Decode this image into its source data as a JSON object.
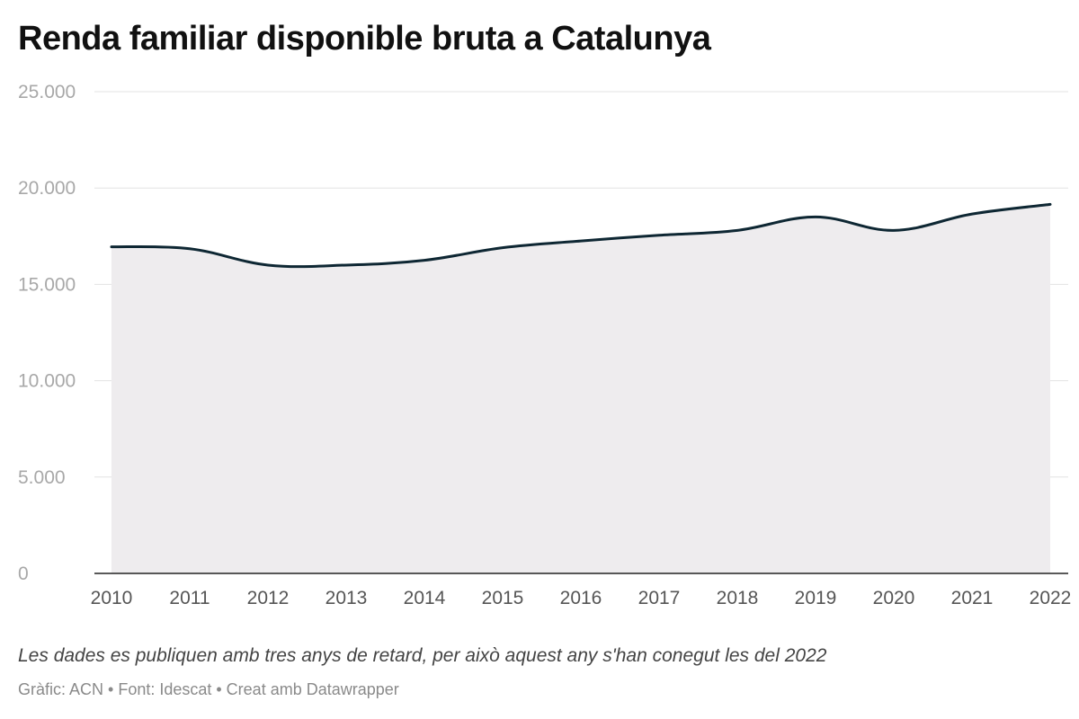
{
  "chart_data": {
    "type": "area",
    "title": "Renda familiar disponible bruta a Catalunya",
    "x": [
      "2010",
      "2011",
      "2012",
      "2013",
      "2014",
      "2015",
      "2016",
      "2017",
      "2018",
      "2019",
      "2020",
      "2021",
      "2022"
    ],
    "series": [
      {
        "values": [
          16950,
          16850,
          16000,
          16000,
          16250,
          16900,
          17250,
          17550,
          17800,
          18500,
          17800,
          18650,
          19150
        ]
      }
    ],
    "y_ticks": [
      0,
      5000,
      10000,
      15000,
      20000,
      25000
    ],
    "y_tick_labels": [
      "0",
      "5.000",
      "10.000",
      "15.000",
      "20.000",
      "25.000"
    ],
    "ylim": [
      0,
      25000
    ],
    "xlabel": "",
    "ylabel": "",
    "grid": true,
    "colors": {
      "line": "#0e2733",
      "area": "#eeecee",
      "grid": "#e3e3e3",
      "baseline": "#222222"
    }
  },
  "footer": {
    "note": "Les dades es publiquen amb tres anys de retard, per això aquest any s'han conegut les del 2022",
    "source": "Gràfic: ACN • Font: Idescat • Creat amb Datawrapper"
  }
}
